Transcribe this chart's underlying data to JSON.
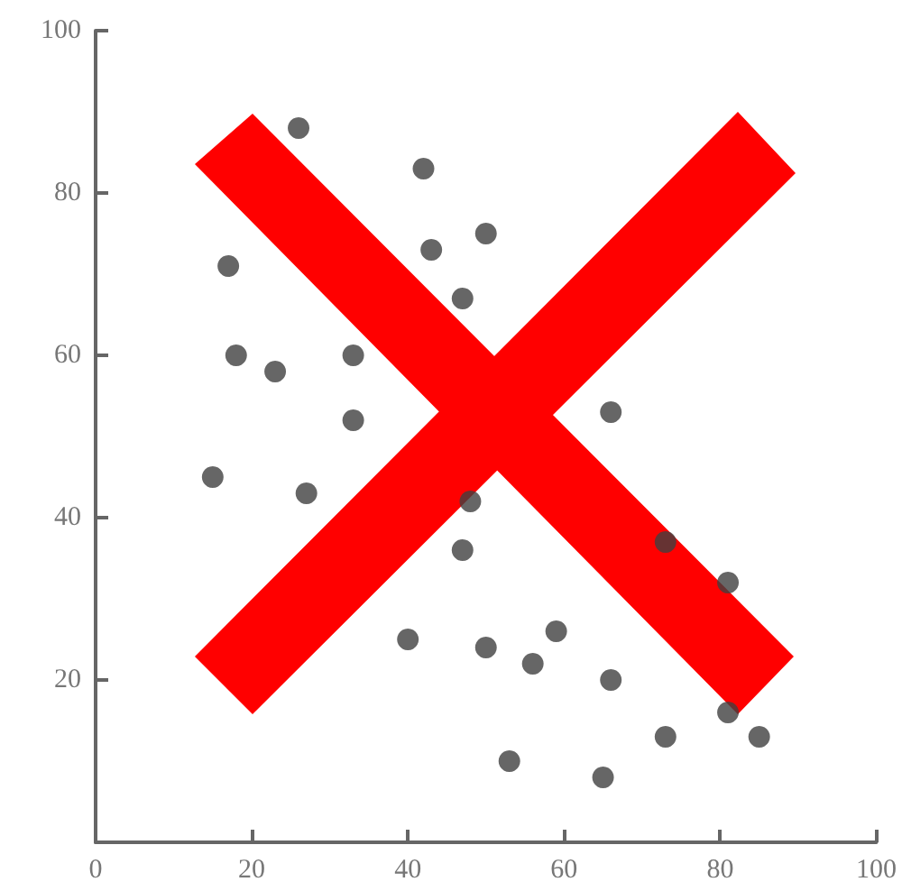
{
  "chart_data": {
    "type": "scatter",
    "x": [
      26,
      42,
      43,
      50,
      47,
      17,
      18,
      23,
      33,
      33,
      15,
      27,
      66,
      48,
      47,
      40,
      73,
      81,
      50,
      56,
      59,
      66,
      73,
      85,
      81,
      53,
      65
    ],
    "values": [
      88,
      83,
      73,
      75,
      67,
      71,
      60,
      58,
      60,
      52,
      45,
      43,
      53,
      42,
      36,
      25,
      37,
      32,
      24,
      22,
      26,
      20,
      13,
      13,
      16,
      10,
      8
    ],
    "color": "#404040",
    "marker": "circle",
    "xlim": [
      0,
      100
    ],
    "ylim": [
      0,
      100
    ],
    "xticks": [
      0,
      20,
      40,
      60,
      80,
      100
    ],
    "yticks": [
      {
        "value": 0,
        "label": null
      },
      20,
      40,
      60,
      80,
      100
    ]
  }
}
